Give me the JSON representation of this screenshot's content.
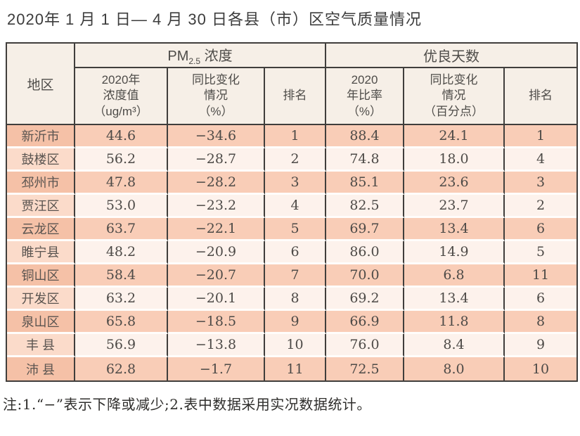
{
  "title": "2020年 1 月 1 日— 4 月 30 日各县（市）区空气质量情况",
  "note": "注:1.“−”表示下降或减少;2.表中数据采用实况数据统计。",
  "colors": {
    "border": "#403e3c",
    "header_bg": "#f6efe7",
    "odd_row_bg": "#f9cdb7",
    "odd_region_bg": "#f5c1a7",
    "even_row_bg": "#fdf2ec",
    "even_region_bg": "#fbdbca"
  },
  "table": {
    "region_header": "地区",
    "pm_group": {
      "prefix": "PM",
      "sub": "2.5",
      "suffix": " 浓度"
    },
    "good_days_group": "优良天数",
    "subheaders": [
      "2020年\n浓度值\n（ug/m³）",
      "同比变化\n情况\n（%）",
      "排名",
      "2020\n年比率\n（%）",
      "同比变化\n情况\n（百分点）",
      "排名"
    ],
    "rows": [
      {
        "region": "新沂市",
        "values": [
          "44.6",
          "−34.6",
          "1",
          "88.4",
          "24.1",
          "1"
        ]
      },
      {
        "region": "鼓楼区",
        "values": [
          "56.2",
          "−28.7",
          "2",
          "74.8",
          "18.0",
          "4"
        ]
      },
      {
        "region": "邳州市",
        "values": [
          "47.8",
          "−28.2",
          "3",
          "85.1",
          "23.6",
          "3"
        ]
      },
      {
        "region": "贾汪区",
        "values": [
          "53.0",
          "−23.2",
          "4",
          "82.5",
          "23.7",
          "2"
        ]
      },
      {
        "region": "云龙区",
        "values": [
          "63.7",
          "−22.1",
          "5",
          "69.7",
          "13.4",
          "6"
        ]
      },
      {
        "region": "睢宁县",
        "values": [
          "48.2",
          "−20.9",
          "6",
          "86.0",
          "14.9",
          "5"
        ]
      },
      {
        "region": "铜山区",
        "values": [
          "58.4",
          "−20.7",
          "7",
          "70.0",
          "6.8",
          "11"
        ]
      },
      {
        "region": "开发区",
        "values": [
          "63.2",
          "−20.1",
          "8",
          "69.2",
          "13.4",
          "6"
        ]
      },
      {
        "region": "泉山区",
        "values": [
          "65.8",
          "−18.5",
          "9",
          "66.9",
          "11.8",
          "8"
        ]
      },
      {
        "region": "丰 县",
        "values": [
          "56.9",
          "−13.8",
          "10",
          "76.0",
          "8.4",
          "9"
        ]
      },
      {
        "region": "沛 县",
        "values": [
          "62.8",
          "−1.7",
          "11",
          "72.5",
          "8.0",
          "10"
        ]
      }
    ]
  }
}
